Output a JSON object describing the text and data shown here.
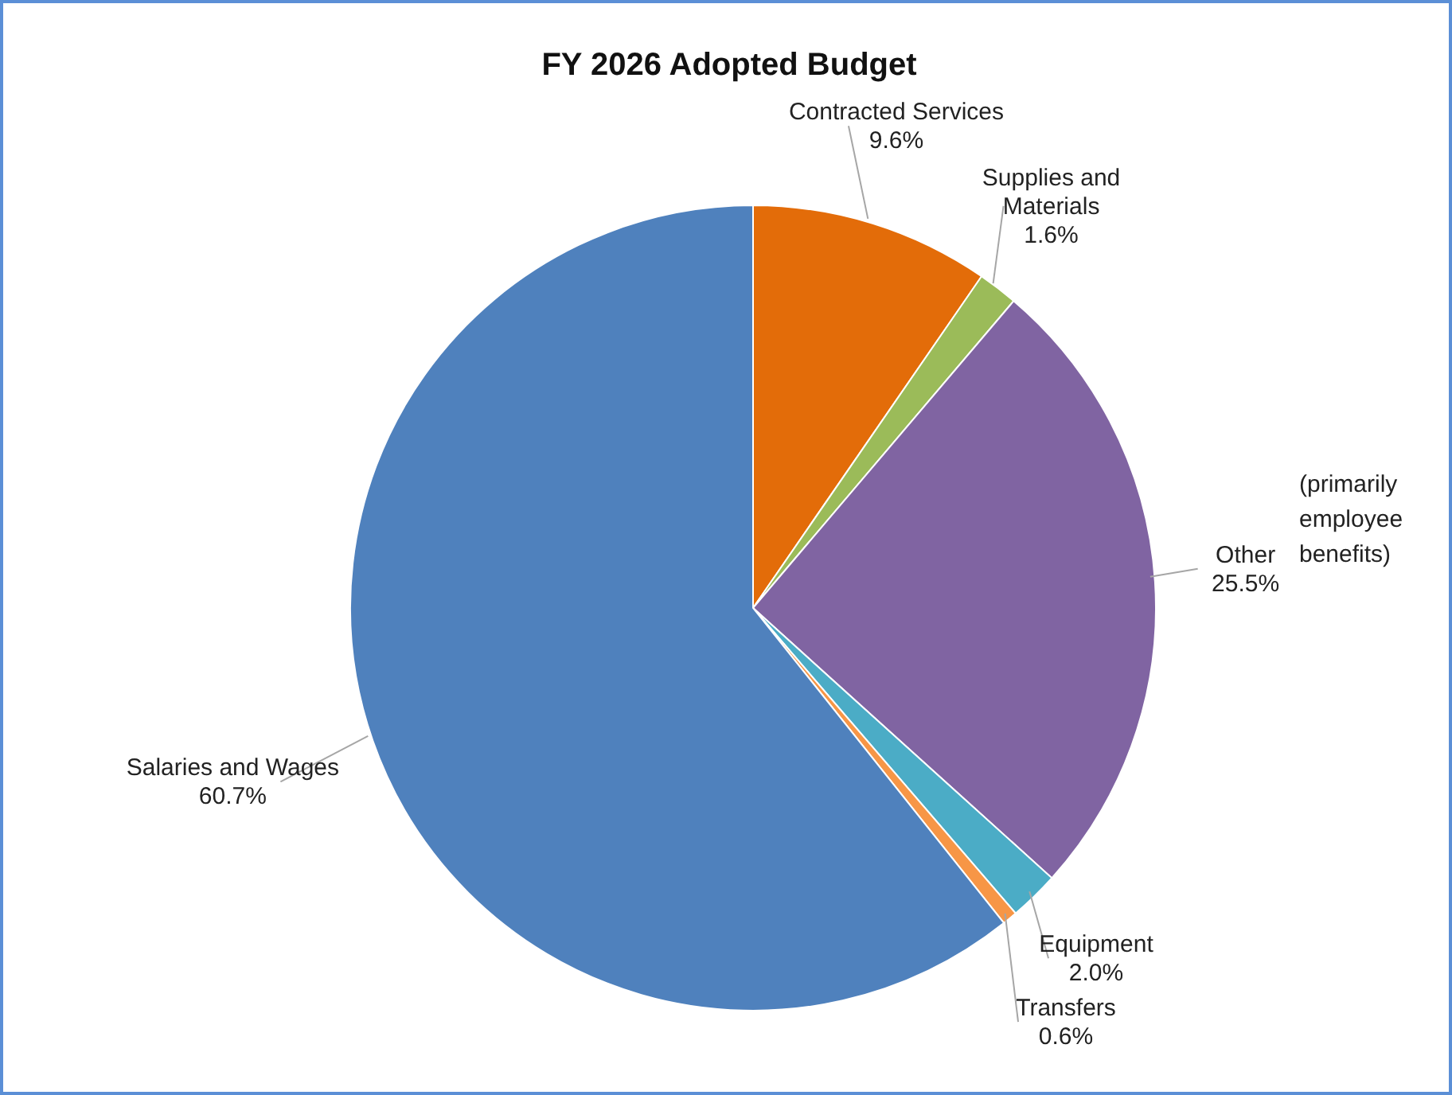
{
  "chart_data": {
    "type": "pie",
    "title": "FY 2026 Adopted Budget",
    "categories": [
      "Contracted Services",
      "Supplies and Materials",
      "Other",
      "Equipment",
      "Transfers",
      "Salaries and Wages"
    ],
    "values": [
      9.6,
      1.6,
      25.5,
      2.0,
      0.6,
      60.7
    ],
    "colors": [
      "#e36c09",
      "#9bbb59",
      "#8064a2",
      "#4bacc6",
      "#f79646",
      "#4f81bd"
    ],
    "value_labels": [
      "9.6%",
      "1.6%",
      "25.5%",
      "2.0%",
      "0.6%",
      "60.7%"
    ],
    "legend": false,
    "annotations": [
      "(primarily employee benefits)"
    ]
  }
}
